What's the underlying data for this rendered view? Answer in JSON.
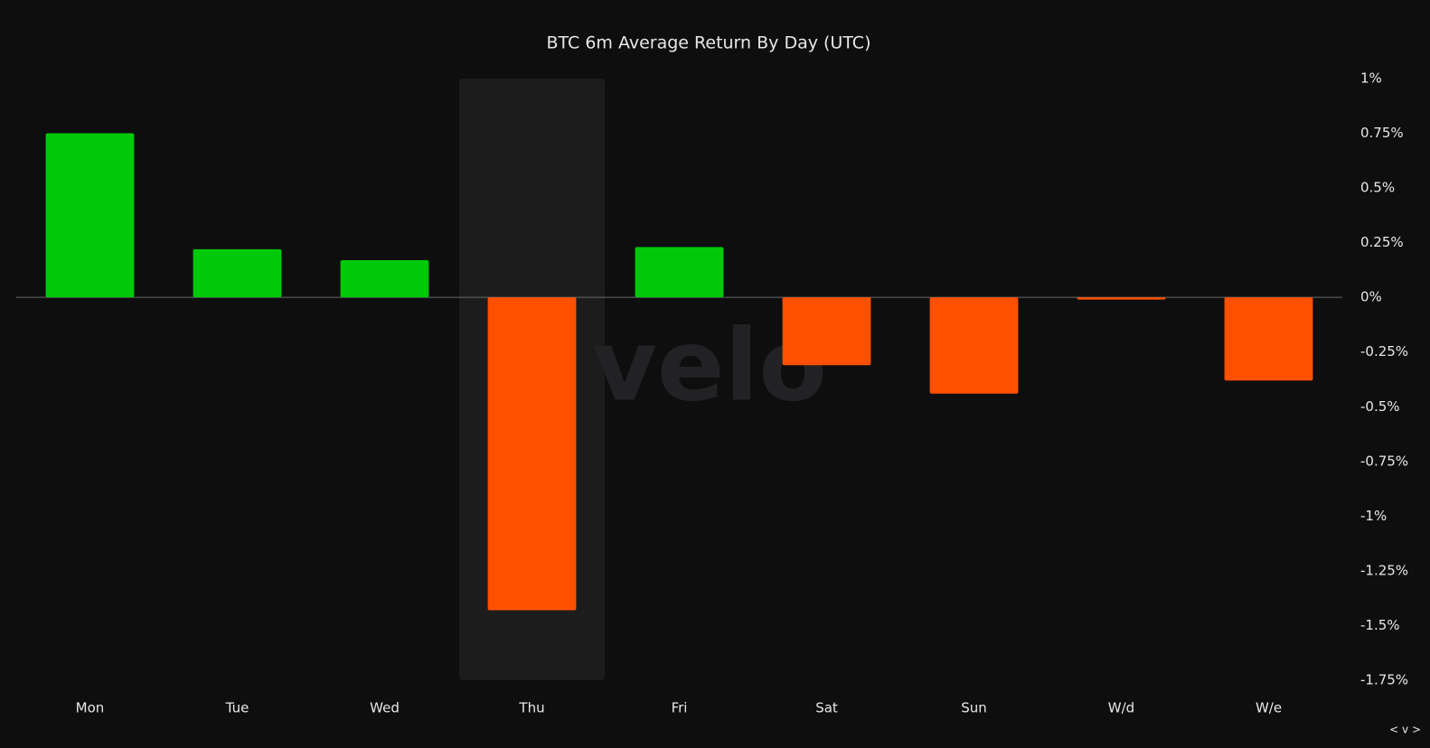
{
  "chart_data": {
    "type": "bar",
    "title": "BTC 6m Average Return By Day (UTC)",
    "categories": [
      "Mon",
      "Tue",
      "Wed",
      "Thu",
      "Fri",
      "Sat",
      "Sun",
      "W/d",
      "W/e"
    ],
    "values": [
      0.75,
      0.22,
      0.17,
      -1.43,
      0.23,
      -0.31,
      -0.44,
      -0.01,
      -0.38
    ],
    "colors": [
      "#00c90a",
      "#00c90a",
      "#00c90a",
      "#ff5000",
      "#00c90a",
      "#ff5000",
      "#ff5000",
      "#ff5000",
      "#ff5000"
    ],
    "highlight": "Thu",
    "ylim": [
      -1.75,
      1
    ],
    "yticks": [
      {
        "value": 1,
        "label": "1%"
      },
      {
        "value": 0.75,
        "label": "0.75%"
      },
      {
        "value": 0.5,
        "label": "0.5%"
      },
      {
        "value": 0.25,
        "label": "0.25%"
      },
      {
        "value": 0,
        "label": "0%"
      },
      {
        "value": -0.25,
        "label": "-0.25%"
      },
      {
        "value": -0.5,
        "label": "-0.5%"
      },
      {
        "value": -0.75,
        "label": "-0.75%"
      },
      {
        "value": -1,
        "label": "-1%"
      },
      {
        "value": -1.25,
        "label": "-1.25%"
      },
      {
        "value": -1.5,
        "label": "-1.5%"
      },
      {
        "value": -1.75,
        "label": "-1.75%"
      }
    ],
    "y_axis_side": "right",
    "grid": false,
    "watermark": "velo",
    "nav": "< v >"
  }
}
